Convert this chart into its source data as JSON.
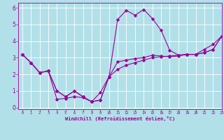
{
  "title": "",
  "xlabel": "Windchill (Refroidissement éolien,°C)",
  "background_color": "#b2e0e8",
  "grid_color": "#ffffff",
  "line_color": "#990099",
  "xlim": [
    -0.5,
    23
  ],
  "ylim": [
    -0.1,
    6.3
  ],
  "x_ticks": [
    0,
    1,
    2,
    3,
    4,
    5,
    6,
    7,
    8,
    9,
    10,
    11,
    12,
    13,
    14,
    15,
    16,
    17,
    18,
    19,
    20,
    21,
    22,
    23
  ],
  "y_ticks": [
    0,
    1,
    2,
    3,
    4,
    5,
    6
  ],
  "series": [
    {
      "x": [
        0,
        1,
        2,
        3,
        4,
        5,
        6,
        7,
        8,
        9,
        10,
        11,
        12,
        13,
        14,
        15,
        16,
        17,
        18,
        19,
        20,
        21,
        22,
        23
      ],
      "y": [
        3.2,
        2.7,
        2.1,
        2.2,
        0.5,
        0.55,
        0.65,
        0.6,
        0.35,
        0.9,
        1.85,
        2.3,
        2.55,
        2.7,
        2.85,
        3.0,
        3.05,
        3.1,
        3.15,
        3.2,
        3.2,
        3.3,
        3.5,
        4.3
      ]
    },
    {
      "x": [
        0,
        1,
        2,
        3,
        4,
        5,
        6,
        7,
        8,
        9,
        10,
        11,
        12,
        13,
        14,
        15,
        16,
        17,
        18,
        19,
        20,
        21,
        22,
        23
      ],
      "y": [
        3.2,
        2.7,
        2.1,
        2.2,
        1.0,
        0.65,
        1.0,
        0.65,
        0.35,
        0.45,
        1.85,
        5.3,
        5.85,
        5.55,
        5.9,
        5.35,
        4.65,
        3.45,
        3.15,
        3.2,
        3.2,
        3.5,
        3.8,
        4.3
      ]
    },
    {
      "x": [
        0,
        1,
        2,
        3,
        4,
        5,
        6,
        7,
        8,
        9,
        10,
        11,
        12,
        13,
        14,
        15,
        16,
        17,
        18,
        19,
        20,
        21,
        22,
        23
      ],
      "y": [
        3.2,
        2.7,
        2.1,
        2.2,
        1.0,
        0.65,
        1.0,
        0.65,
        0.35,
        0.45,
        1.85,
        2.75,
        2.85,
        2.95,
        3.0,
        3.15,
        3.1,
        3.05,
        3.1,
        3.2,
        3.2,
        3.3,
        3.5,
        4.3
      ]
    }
  ]
}
